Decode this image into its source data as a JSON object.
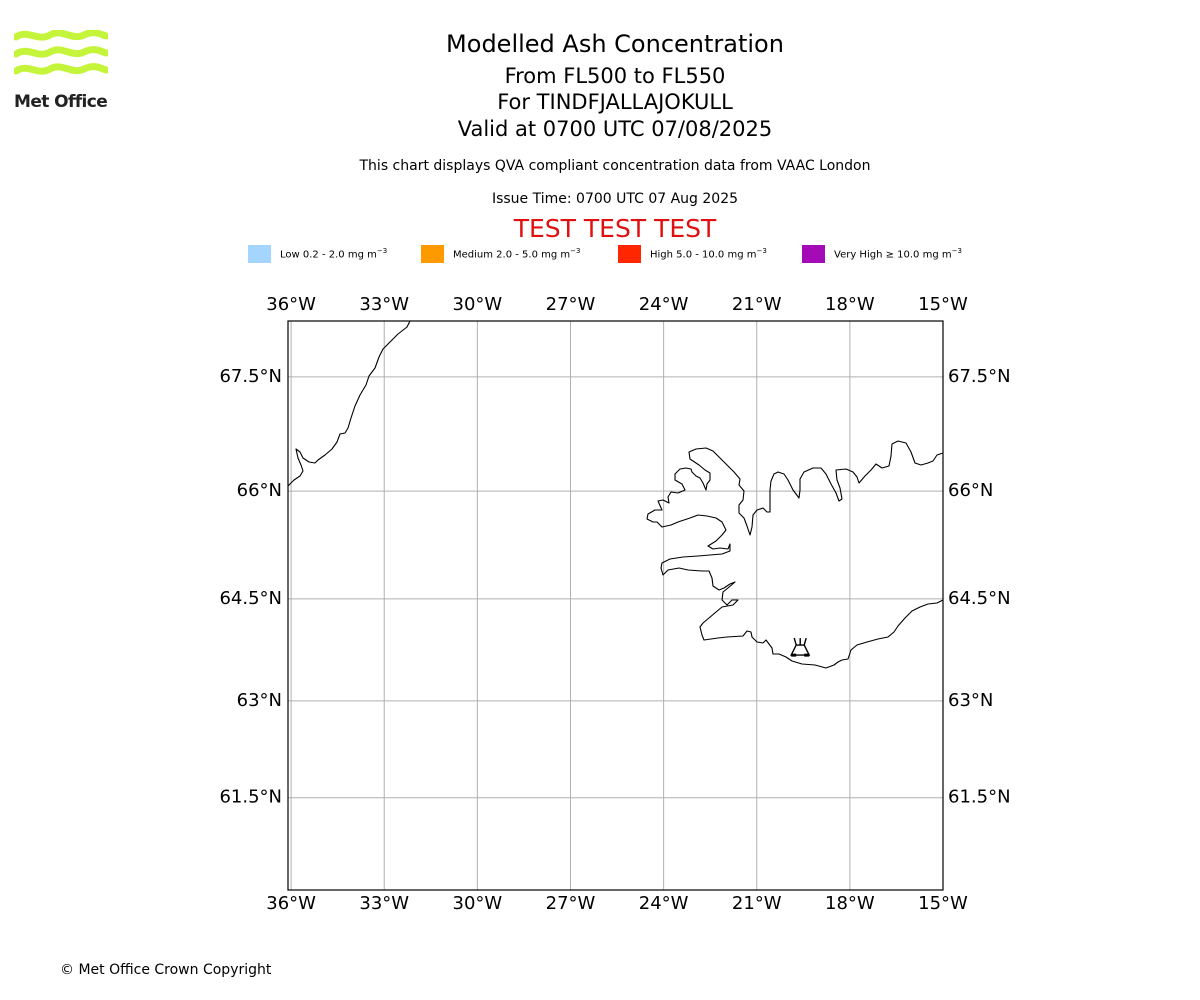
{
  "header": {
    "title": "Modelled Ash Concentration",
    "flight_levels": "From FL500 to FL550",
    "volcano": "For TINDFJALLAJOKULL",
    "valid_time": "Valid at 0700 UTC 07/08/2025",
    "compliance_note": "This chart displays QVA compliant concentration data from VAAC London",
    "issue_time": "Issue Time: 0700 UTC 07 Aug 2025",
    "test_banner": "TEST TEST TEST"
  },
  "logo": {
    "text": "Met Office",
    "color": "#c5f53a"
  },
  "legend": [
    {
      "label": "Low 0.2 - 2.0 mg m",
      "unit_exp": "−3",
      "color": "#a3d5ff"
    },
    {
      "label": "Medium 2.0 - 5.0 mg m",
      "unit_exp": "−3",
      "color": "#ff9900"
    },
    {
      "label": "High 5.0 - 10.0 mg m",
      "unit_exp": "−3",
      "color": "#ff2600"
    },
    {
      "label": "Very High  ≥  10.0 mg m",
      "unit_exp": "−3",
      "color": "#a40ab5"
    }
  ],
  "map": {
    "lon_range": [
      -36.1,
      -15.0
    ],
    "lat_range": [
      60.0,
      68.2
    ],
    "lon_ticks": [
      -36,
      -33,
      -30,
      -27,
      -24,
      -21,
      -18,
      -15
    ],
    "lon_labels": [
      "36°W",
      "33°W",
      "30°W",
      "27°W",
      "24°W",
      "21°W",
      "18°W",
      "15°W"
    ],
    "lat_ticks": [
      61.5,
      63,
      64.5,
      66,
      67.5
    ],
    "lat_labels": [
      "61.5°N",
      "63°N",
      "64.5°N",
      "66°N",
      "67.5°N"
    ],
    "volcano_marker": {
      "name": "Tindfjallajokull",
      "lon": -19.6,
      "lat": 63.8
    },
    "grid_color": "#b0b0b0"
  },
  "footer": {
    "copyright": "© Met Office Crown Copyright"
  }
}
